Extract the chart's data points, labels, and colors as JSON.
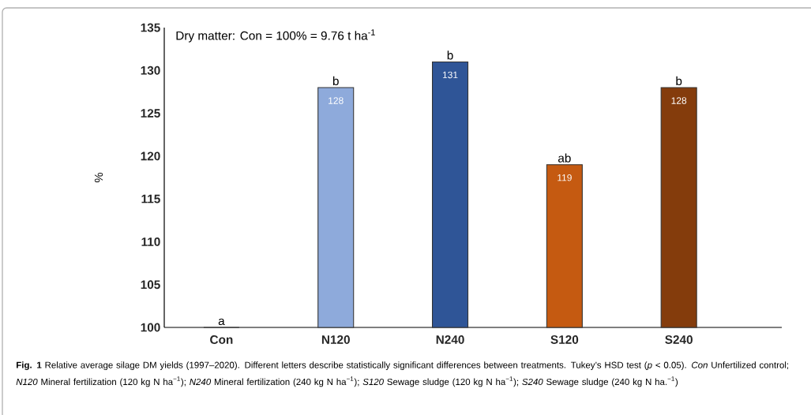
{
  "chart_data": {
    "type": "bar",
    "ylabel": "%",
    "categories": [
      "Con",
      "N120",
      "N240",
      "S120",
      "S240"
    ],
    "values": [
      100,
      128,
      131,
      119,
      128
    ],
    "colors": [
      "#8eaadb",
      "#8eaadb",
      "#2f5597",
      "#c55a11",
      "#843c0c"
    ],
    "value_labels": [
      null,
      "128",
      "131",
      "119",
      "128"
    ],
    "ylim": [
      100,
      135
    ],
    "yticks": [
      100,
      105,
      110,
      115,
      120,
      125,
      130,
      135
    ],
    "grid": false,
    "annotations": [
      "Dry matter: Con = 100% = 9.76 t ha$^{-1}$",
      "**Fig. 1** Relative average silage DM yields (1997–2020). Different letters describe statistically significant differences between treatments. Tukey’s HSD test (*p* < 0.05). *Con* Unfertilized control; *N120* Mineral fertilization (120 kg N ha$^{−1}$); *N240* Mineral fertilization (240 kg N ha$^{−1}$); *S120* Sewage sludge (120 kg N ha$^{−1}$); *S240* Sewage sludge (240 kg N ha.$^{−1}$)",
      {
        "text": "a",
        "x": "Con",
        "y": 100
      },
      {
        "text": "b",
        "x": "N120",
        "y": 128
      },
      {
        "text": "b",
        "x": "N240",
        "y": 131
      },
      {
        "text": "ab",
        "x": "S120",
        "y": 119
      },
      {
        "text": "b",
        "x": "S240",
        "y": 128
      }
    ]
  }
}
